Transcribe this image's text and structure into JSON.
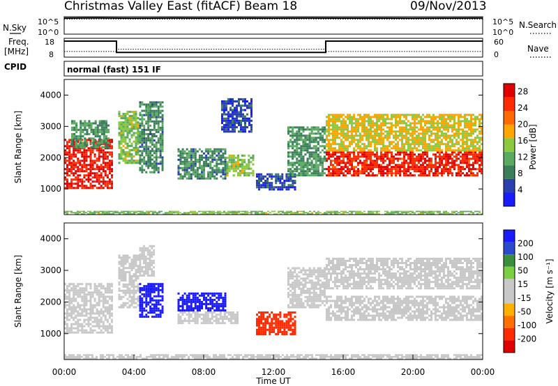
{
  "header": {
    "title": "Christmas Valley East (fitACF)",
    "beam": "Beam 18",
    "date": "09/Nov/2013"
  },
  "left_labels": {
    "nsky": "N.Sky",
    "freq_line1": "Freq.",
    "freq_line2": "[MHz]",
    "cpid": "CPID"
  },
  "right_labels": {
    "nsearch": "N.Search",
    "nave": "Nave"
  },
  "cpid_text": "normal (fast) 151 IF",
  "colors": {
    "power_scale": [
      "#1a1aff",
      "#2a3fb0",
      "#3a7f5a",
      "#5aaa60",
      "#8cc840",
      "#ffa500",
      "#ff6a00",
      "#ff2a00",
      "#e00000"
    ],
    "velocity_scale": [
      "#1a1aff",
      "#2a4bcc",
      "#3a8f3a",
      "#7ad040",
      "#c8c8c8",
      "#c8c8c8",
      "#ffb000",
      "#ff7000",
      "#ff2a00",
      "#e00000"
    ]
  },
  "chart_data": [
    {
      "type": "line",
      "name": "noise",
      "left_axis_ticks": [
        "10^5",
        "10^0"
      ],
      "right_axis_ticks": [
        "10^5",
        "10^0"
      ],
      "series": [
        {
          "name": "N.Sky",
          "style": "solid",
          "x": [
            "00:00",
            "02:00",
            "04:00",
            "06:00",
            "08:00",
            "10:00",
            "12:00",
            "14:00",
            "16:00",
            "18:00",
            "20:00",
            "22:00",
            "24:00"
          ],
          "values": [
            40000,
            45000,
            38000,
            42000,
            39000,
            41000,
            40000,
            43000,
            40000,
            39000,
            38000,
            40000,
            41000
          ]
        },
        {
          "name": "N.Search",
          "style": "dotted",
          "x": [
            "00:00",
            "02:00",
            "04:00",
            "06:00",
            "08:00",
            "10:00",
            "12:00",
            "14:00",
            "16:00",
            "18:00",
            "20:00",
            "22:00",
            "24:00"
          ],
          "values": [
            20000,
            22000,
            21000,
            20000,
            19000,
            20000,
            21000,
            22000,
            20000,
            19000,
            20000,
            21000,
            20000
          ]
        }
      ]
    },
    {
      "type": "line",
      "name": "frequency",
      "left_axis_ticks": [
        "18",
        "8"
      ],
      "right_axis_ticks": [
        "60",
        "0"
      ],
      "series": [
        {
          "name": "Freq",
          "style": "solid",
          "x": [
            "00:00",
            "03:00",
            "03:00",
            "15:00",
            "15:00",
            "24:00"
          ],
          "values": [
            16.5,
            16.5,
            10.5,
            10.5,
            16.5,
            16.5
          ]
        },
        {
          "name": "Nave",
          "style": "dotted",
          "x": [
            "00:00",
            "03:00",
            "03:00",
            "15:00",
            "15:00",
            "24:00"
          ],
          "values": [
            18,
            18,
            25,
            25,
            18,
            18
          ]
        }
      ]
    },
    {
      "type": "heatmap",
      "name": "power",
      "ylabel": "Slant Range [km]",
      "y_ticks": [
        1000,
        2000,
        3000,
        4000
      ],
      "ylim": [
        180,
        4500
      ],
      "colorbar_label": "Power [dB]",
      "colorbar_ticks": [
        4,
        8,
        12,
        16,
        20,
        24,
        28
      ],
      "colorbar_range": [
        0,
        30
      ],
      "regions": [
        {
          "t0": 0.0,
          "t1": 2.8,
          "r0": 1000,
          "r1": 2600,
          "level": 27
        },
        {
          "t0": 0.4,
          "t1": 2.6,
          "r0": 2300,
          "r1": 3200,
          "level": 10
        },
        {
          "t0": 3.1,
          "t1": 4.3,
          "r0": 1800,
          "r1": 3500,
          "level": 14
        },
        {
          "t0": 4.3,
          "t1": 5.7,
          "r0": 1500,
          "r1": 3800,
          "level": 9
        },
        {
          "t0": 6.5,
          "t1": 9.3,
          "r0": 1300,
          "r1": 2300,
          "level": 9
        },
        {
          "t0": 9.3,
          "t1": 10.9,
          "r0": 1400,
          "r1": 2100,
          "level": 14
        },
        {
          "t0": 9.0,
          "t1": 10.8,
          "r0": 2800,
          "r1": 3900,
          "level": 5
        },
        {
          "t0": 11.0,
          "t1": 13.3,
          "r0": 950,
          "r1": 1500,
          "level": 5
        },
        {
          "t0": 12.8,
          "t1": 15.0,
          "r0": 1400,
          "r1": 3000,
          "level": 10
        },
        {
          "t0": 15.0,
          "t1": 24.0,
          "r0": 1400,
          "r1": 2200,
          "level": 26
        },
        {
          "t0": 15.0,
          "t1": 24.0,
          "r0": 2200,
          "r1": 3400,
          "level": 17
        },
        {
          "t0": 0.0,
          "t1": 24.0,
          "r0": 180,
          "r1": 300,
          "level": 14
        }
      ]
    },
    {
      "type": "heatmap",
      "name": "velocity",
      "xlabel": "Time UT",
      "ylabel": "Slant Range [km]",
      "y_ticks": [
        1000,
        2000,
        3000,
        4000
      ],
      "ylim": [
        180,
        4500
      ],
      "x_ticks": [
        "00:00",
        "04:00",
        "08:00",
        "12:00",
        "16:00",
        "20:00",
        "00:00"
      ],
      "xlim": [
        0,
        24
      ],
      "colorbar_label": "Velocity [m s⁻¹]",
      "colorbar_ticks": [
        "200",
        "100",
        "50",
        "15",
        "-15",
        "-50",
        "-100",
        "-200"
      ],
      "colorbar_range": [
        -250,
        250
      ],
      "regions": [
        {
          "t0": 0.0,
          "t1": 2.8,
          "r0": 1000,
          "r1": 2600,
          "level": 0
        },
        {
          "t0": 3.1,
          "t1": 4.3,
          "r0": 1800,
          "r1": 3500,
          "level": 0
        },
        {
          "t0": 4.3,
          "t1": 5.2,
          "r0": 2800,
          "r1": 3800,
          "level": 40
        },
        {
          "t0": 4.3,
          "t1": 5.7,
          "r0": 1500,
          "r1": 2600,
          "level": 220
        },
        {
          "t0": 6.5,
          "t1": 9.3,
          "r0": 1700,
          "r1": 2300,
          "level": 220
        },
        {
          "t0": 6.5,
          "t1": 10.0,
          "r0": 1300,
          "r1": 1700,
          "level": 40
        },
        {
          "t0": 11.0,
          "t1": 13.3,
          "r0": 950,
          "r1": 1700,
          "level": -180
        },
        {
          "t0": 12.8,
          "t1": 15.0,
          "r0": 1800,
          "r1": 3100,
          "level": 40
        },
        {
          "t0": 15.0,
          "t1": 24.0,
          "r0": 1400,
          "r1": 2200,
          "level": 0
        },
        {
          "t0": 15.0,
          "t1": 24.0,
          "r0": 2400,
          "r1": 3400,
          "level": 0
        },
        {
          "t0": 0.0,
          "t1": 24.0,
          "r0": 180,
          "r1": 350,
          "level": -40
        }
      ]
    }
  ]
}
